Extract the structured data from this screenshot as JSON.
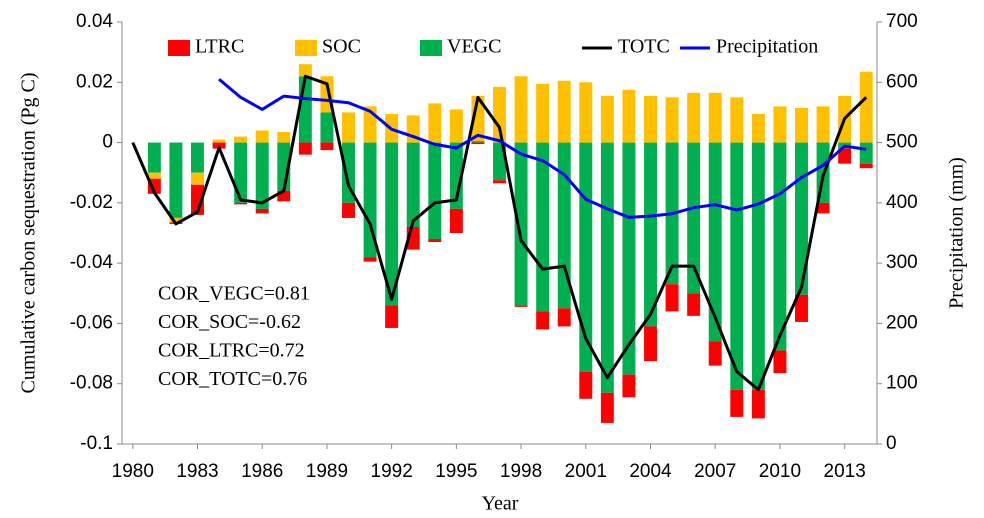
{
  "chart_data": {
    "type": "bar",
    "stacked": true,
    "x_label": "Year",
    "y_label": "Cumulative carbon sequestration (Pg C)",
    "y2_label": "Precipitation (mm)",
    "x": [
      1980,
      1981,
      1982,
      1983,
      1984,
      1985,
      1986,
      1987,
      1988,
      1989,
      1990,
      1991,
      1992,
      1993,
      1994,
      1995,
      1996,
      1997,
      1998,
      1999,
      2000,
      2001,
      2002,
      2003,
      2004,
      2005,
      2006,
      2007,
      2008,
      2009,
      2010,
      2011,
      2012,
      2013,
      2014
    ],
    "xlim": [
      1979.5,
      2014.5
    ],
    "xticks": [
      1980,
      1983,
      1986,
      1989,
      1992,
      1995,
      1998,
      2001,
      2004,
      2007,
      2010,
      2013
    ],
    "ylim": [
      -0.1,
      0.04
    ],
    "yticks": [
      -0.1,
      -0.08,
      -0.06,
      -0.04,
      -0.02,
      0,
      0.02,
      0.04
    ],
    "y2lim": [
      0,
      700
    ],
    "y2ticks": [
      0,
      100,
      200,
      300,
      400,
      500,
      600,
      700
    ],
    "series": [
      {
        "name": "LTRC",
        "type": "bar",
        "color": "#ff0000",
        "values": [
          0,
          -0.005,
          -0.0005,
          -0.01,
          -0.002,
          -0.0005,
          -0.0015,
          -0.0035,
          -0.004,
          -0.0025,
          -0.005,
          -0.0015,
          -0.0075,
          -0.0075,
          -0.001,
          -0.008,
          -0.0005,
          -0.001,
          -0.0005,
          -0.006,
          -0.006,
          -0.009,
          -0.01,
          -0.0075,
          -0.0115,
          -0.009,
          -0.0075,
          -0.008,
          -0.009,
          -0.0095,
          -0.0075,
          -0.009,
          -0.0035,
          -0.005,
          -0.0015
        ]
      },
      {
        "name": "SOC",
        "type": "bar",
        "color": "#ffc000",
        "values": [
          0,
          -0.002,
          -0.0015,
          -0.004,
          0.001,
          0.002,
          0.004,
          0.0035,
          0.004,
          0.012,
          0.01,
          0.012,
          0.0095,
          0.009,
          0.013,
          0.011,
          0.015,
          0.0185,
          0.022,
          0.0195,
          0.0205,
          0.02,
          0.0155,
          0.0175,
          0.0155,
          0.015,
          0.0165,
          0.0165,
          0.015,
          0.0095,
          0.012,
          0.0115,
          0.012,
          0.0155,
          0.0235
        ]
      },
      {
        "name": "VEGC",
        "type": "bar",
        "color": "#00b050",
        "values": [
          0,
          -0.01,
          -0.025,
          -0.01,
          0,
          -0.02,
          -0.022,
          -0.016,
          0.022,
          0.01,
          -0.02,
          -0.038,
          -0.054,
          -0.028,
          -0.032,
          -0.022,
          0.0005,
          -0.0125,
          -0.054,
          -0.056,
          -0.055,
          -0.076,
          -0.083,
          -0.077,
          -0.061,
          -0.047,
          -0.05,
          -0.066,
          -0.082,
          -0.082,
          -0.069,
          -0.0505,
          -0.02,
          -0.002,
          -0.007
        ]
      },
      {
        "name": "TOTC",
        "type": "line",
        "color": "#000000",
        "values": [
          0,
          -0.0166,
          -0.027,
          -0.023,
          -0.0017,
          -0.019,
          -0.02,
          -0.016,
          0.022,
          0.0195,
          -0.0143,
          -0.027,
          -0.052,
          -0.026,
          -0.02,
          -0.019,
          0.015,
          0.005,
          -0.0325,
          -0.042,
          -0.041,
          -0.065,
          -0.078,
          -0.067,
          -0.057,
          -0.041,
          -0.041,
          -0.058,
          -0.076,
          -0.082,
          -0.064,
          -0.048,
          -0.011,
          0.008,
          0.015
        ]
      },
      {
        "name": "Precipitation",
        "type": "line",
        "axis": "y2",
        "color": "#0000ff",
        "values": [
          null,
          null,
          null,
          null,
          605,
          575,
          555,
          577,
          573,
          570,
          566,
          552,
          522,
          510,
          497,
          491,
          512,
          503,
          481,
          470,
          447,
          406,
          390,
          376,
          378,
          382,
          392,
          397,
          388,
          398,
          415,
          442,
          462,
          494,
          489
        ]
      }
    ],
    "annotations": [
      "COR_VEGC=0.81",
      "COR_SOC=-0.62",
      "COR_LTRC=0.72",
      "COR_TOTC=0.76"
    ],
    "legend": "top"
  }
}
